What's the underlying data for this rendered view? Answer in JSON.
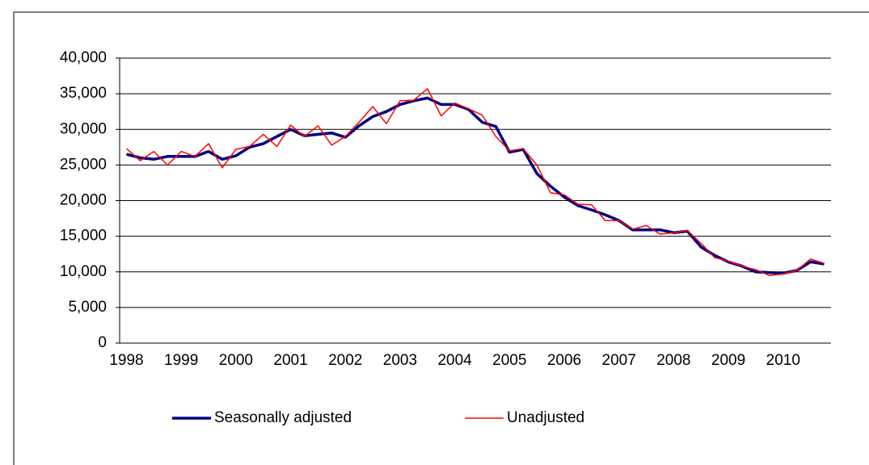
{
  "chart_data": {
    "type": "line",
    "categories": [
      "1998",
      null,
      null,
      null,
      "1999",
      null,
      null,
      null,
      "2000",
      null,
      null,
      null,
      "2001",
      null,
      null,
      null,
      "2002",
      null,
      null,
      null,
      "2003",
      null,
      null,
      null,
      "2004",
      null,
      null,
      null,
      "2005",
      null,
      null,
      null,
      "2006",
      null,
      null,
      null,
      "2007",
      null,
      null,
      null,
      "2008",
      null,
      null,
      null,
      "2009",
      null,
      null,
      null,
      "2010",
      null,
      null,
      null
    ],
    "series": [
      {
        "name": "Seasonally adjusted",
        "color": "#000080",
        "width": 3.5,
        "values": [
          26500,
          26000,
          25800,
          26200,
          26200,
          26200,
          26900,
          25800,
          26300,
          27500,
          28000,
          29000,
          30000,
          29100,
          29300,
          29500,
          28900,
          30500,
          31800,
          32500,
          33500,
          34000,
          34400,
          33500,
          33500,
          32800,
          31000,
          30400,
          26800,
          27200,
          23800,
          22000,
          20500,
          19300,
          18700,
          18000,
          17200,
          15900,
          15900,
          15900,
          15500,
          15700,
          13500,
          12300,
          11400,
          10800,
          10000,
          9900,
          9800,
          10200,
          11400,
          11100
        ]
      },
      {
        "name": "Unadjusted",
        "color": "#ff0000",
        "width": 1.5,
        "values": [
          27300,
          25600,
          26900,
          25000,
          26900,
          26200,
          28000,
          24600,
          27200,
          27600,
          29300,
          27600,
          30600,
          29000,
          30500,
          27800,
          29000,
          31000,
          33200,
          30800,
          34000,
          34100,
          35700,
          31900,
          33700,
          32900,
          32000,
          29000,
          27000,
          27300,
          25000,
          21100,
          20800,
          19500,
          19400,
          17200,
          17200,
          16000,
          16500,
          15300,
          15500,
          15800,
          14000,
          12000,
          11500,
          10800,
          10300,
          9500,
          9700,
          10200,
          11800,
          11200
        ]
      }
    ],
    "ylim": [
      0,
      40000
    ],
    "yticks": [
      0,
      {
        "value": 5000,
        "label": "5,000"
      },
      {
        "value": 10000,
        "label": "10,000"
      },
      {
        "value": 15000,
        "label": "15,000"
      },
      {
        "value": 20000,
        "label": "20,000"
      },
      {
        "value": 25000,
        "label": "25,000"
      },
      {
        "value": 30000,
        "label": "30,000"
      },
      {
        "value": 35000,
        "label": "35,000"
      },
      {
        "value": 40000,
        "label": "40,000"
      }
    ],
    "grid": true,
    "legend": "bottom"
  }
}
